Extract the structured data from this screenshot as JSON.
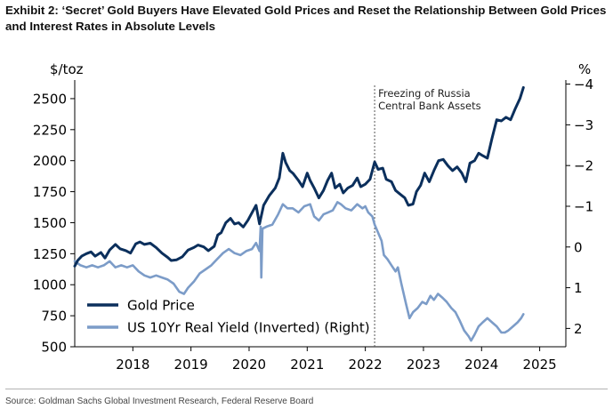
{
  "header": {
    "title_line1": "Exhibit 2: ‘Secret’ Gold Buyers Have Elevated Gold Prices and Reset the Relationship Between Gold Prices",
    "title_line2": "and Interest Rates in Absolute Levels"
  },
  "footer": {
    "source": "Source: Goldman Sachs Global Investment Research, Federal Reserve Board"
  },
  "chart_data": {
    "type": "line",
    "x_unit": "year",
    "xlim": [
      2017.0,
      2025.45
    ],
    "xticks": [
      2018,
      2019,
      2020,
      2021,
      2022,
      2023,
      2024,
      2025
    ],
    "xtick_labels": [
      "2018",
      "2019",
      "2020",
      "2021",
      "2022",
      "2023",
      "2024",
      "2025"
    ],
    "ylabel_left": "$/toz",
    "ylim_left": [
      500,
      2650
    ],
    "yticks_left": [
      500,
      750,
      1000,
      1250,
      1500,
      1750,
      2000,
      2250,
      2500
    ],
    "ytick_labels_left": [
      "500",
      "750",
      "1000",
      "1250",
      "1500",
      "1750",
      "2000",
      "2250",
      "2500"
    ],
    "ylabel_right": "%",
    "ylim_right": [
      2.45,
      -4.1
    ],
    "right_axis_inverted": true,
    "yticks_right": [
      -4,
      -3,
      -2,
      -1,
      0,
      1,
      2
    ],
    "ytick_labels_right": [
      "−4",
      "−3",
      "−2",
      "−1",
      "0",
      "1",
      "2"
    ],
    "annotation": {
      "x": 2022.16,
      "line1": "Freezing of Russia",
      "line2": "Central Bank Assets"
    },
    "legend": {
      "placement": "lower-left",
      "entries": [
        "Gold Price",
        "US 10Yr Real Yield (Inverted) (Right)"
      ]
    },
    "colors": {
      "gold": "#0b2f5c",
      "yield": "#7c9cc8",
      "annotation": "#555555",
      "axis": "#000000"
    },
    "series": [
      {
        "name": "Gold Price",
        "axis": "left",
        "points": [
          [
            2017.0,
            1150
          ],
          [
            2017.05,
            1195
          ],
          [
            2017.12,
            1230
          ],
          [
            2017.2,
            1250
          ],
          [
            2017.28,
            1265
          ],
          [
            2017.35,
            1230
          ],
          [
            2017.45,
            1260
          ],
          [
            2017.52,
            1215
          ],
          [
            2017.6,
            1280
          ],
          [
            2017.7,
            1325
          ],
          [
            2017.78,
            1290
          ],
          [
            2017.88,
            1275
          ],
          [
            2017.96,
            1255
          ],
          [
            2018.05,
            1330
          ],
          [
            2018.12,
            1345
          ],
          [
            2018.2,
            1325
          ],
          [
            2018.3,
            1335
          ],
          [
            2018.4,
            1300
          ],
          [
            2018.5,
            1255
          ],
          [
            2018.6,
            1220
          ],
          [
            2018.66,
            1195
          ],
          [
            2018.75,
            1200
          ],
          [
            2018.85,
            1225
          ],
          [
            2018.95,
            1280
          ],
          [
            2019.05,
            1300
          ],
          [
            2019.12,
            1320
          ],
          [
            2019.22,
            1305
          ],
          [
            2019.3,
            1275
          ],
          [
            2019.4,
            1310
          ],
          [
            2019.46,
            1400
          ],
          [
            2019.52,
            1420
          ],
          [
            2019.6,
            1500
          ],
          [
            2019.68,
            1535
          ],
          [
            2019.75,
            1490
          ],
          [
            2019.82,
            1500
          ],
          [
            2019.9,
            1465
          ],
          [
            2019.98,
            1520
          ],
          [
            2020.05,
            1580
          ],
          [
            2020.12,
            1640
          ],
          [
            2020.18,
            1490
          ],
          [
            2020.25,
            1640
          ],
          [
            2020.35,
            1720
          ],
          [
            2020.45,
            1780
          ],
          [
            2020.52,
            1860
          ],
          [
            2020.58,
            2060
          ],
          [
            2020.63,
            1985
          ],
          [
            2020.7,
            1920
          ],
          [
            2020.76,
            1895
          ],
          [
            2020.85,
            1840
          ],
          [
            2020.92,
            1790
          ],
          [
            2021.0,
            1900
          ],
          [
            2021.05,
            1840
          ],
          [
            2021.12,
            1780
          ],
          [
            2021.2,
            1700
          ],
          [
            2021.28,
            1760
          ],
          [
            2021.35,
            1840
          ],
          [
            2021.42,
            1900
          ],
          [
            2021.48,
            1780
          ],
          [
            2021.56,
            1810
          ],
          [
            2021.62,
            1740
          ],
          [
            2021.7,
            1780
          ],
          [
            2021.78,
            1800
          ],
          [
            2021.86,
            1860
          ],
          [
            2021.92,
            1790
          ],
          [
            2022.0,
            1810
          ],
          [
            2022.08,
            1850
          ],
          [
            2022.16,
            1990
          ],
          [
            2022.22,
            1930
          ],
          [
            2022.3,
            1940
          ],
          [
            2022.36,
            1850
          ],
          [
            2022.45,
            1830
          ],
          [
            2022.52,
            1760
          ],
          [
            2022.6,
            1730
          ],
          [
            2022.68,
            1700
          ],
          [
            2022.74,
            1640
          ],
          [
            2022.82,
            1650
          ],
          [
            2022.88,
            1750
          ],
          [
            2022.95,
            1800
          ],
          [
            2023.02,
            1900
          ],
          [
            2023.1,
            1830
          ],
          [
            2023.18,
            1920
          ],
          [
            2023.26,
            2000
          ],
          [
            2023.34,
            2010
          ],
          [
            2023.42,
            1960
          ],
          [
            2023.5,
            1920
          ],
          [
            2023.58,
            1950
          ],
          [
            2023.66,
            1900
          ],
          [
            2023.73,
            1830
          ],
          [
            2023.8,
            1980
          ],
          [
            2023.88,
            2000
          ],
          [
            2023.95,
            2060
          ],
          [
            2024.02,
            2040
          ],
          [
            2024.1,
            2020
          ],
          [
            2024.18,
            2180
          ],
          [
            2024.26,
            2330
          ],
          [
            2024.34,
            2320
          ],
          [
            2024.42,
            2350
          ],
          [
            2024.5,
            2330
          ],
          [
            2024.58,
            2420
          ],
          [
            2024.66,
            2500
          ],
          [
            2024.72,
            2590
          ]
        ]
      },
      {
        "name": "US 10Yr Real Yield (Inverted) (Right)",
        "axis": "right",
        "points": [
          [
            2017.0,
            0.35
          ],
          [
            2017.1,
            0.45
          ],
          [
            2017.2,
            0.5
          ],
          [
            2017.3,
            0.45
          ],
          [
            2017.4,
            0.5
          ],
          [
            2017.5,
            0.45
          ],
          [
            2017.6,
            0.35
          ],
          [
            2017.7,
            0.5
          ],
          [
            2017.8,
            0.45
          ],
          [
            2017.9,
            0.5
          ],
          [
            2018.0,
            0.45
          ],
          [
            2018.1,
            0.6
          ],
          [
            2018.2,
            0.7
          ],
          [
            2018.3,
            0.75
          ],
          [
            2018.4,
            0.7
          ],
          [
            2018.5,
            0.75
          ],
          [
            2018.6,
            0.8
          ],
          [
            2018.7,
            0.9
          ],
          [
            2018.8,
            1.1
          ],
          [
            2018.88,
            1.15
          ],
          [
            2018.95,
            1.0
          ],
          [
            2019.05,
            0.85
          ],
          [
            2019.15,
            0.65
          ],
          [
            2019.25,
            0.55
          ],
          [
            2019.35,
            0.45
          ],
          [
            2019.45,
            0.3
          ],
          [
            2019.55,
            0.15
          ],
          [
            2019.65,
            0.05
          ],
          [
            2019.75,
            0.15
          ],
          [
            2019.85,
            0.2
          ],
          [
            2019.95,
            0.1
          ],
          [
            2020.05,
            0.05
          ],
          [
            2020.12,
            -0.1
          ],
          [
            2020.18,
            0.1
          ],
          [
            2020.2,
            -0.5
          ],
          [
            2020.21,
            0.75
          ],
          [
            2020.23,
            -0.45
          ],
          [
            2020.3,
            -0.5
          ],
          [
            2020.4,
            -0.55
          ],
          [
            2020.5,
            -0.8
          ],
          [
            2020.58,
            -1.05
          ],
          [
            2020.66,
            -0.95
          ],
          [
            2020.75,
            -0.95
          ],
          [
            2020.85,
            -0.85
          ],
          [
            2020.95,
            -1.0
          ],
          [
            2021.05,
            -1.05
          ],
          [
            2021.12,
            -0.75
          ],
          [
            2021.2,
            -0.65
          ],
          [
            2021.28,
            -0.8
          ],
          [
            2021.36,
            -0.85
          ],
          [
            2021.44,
            -0.9
          ],
          [
            2021.52,
            -1.1
          ],
          [
            2021.58,
            -1.05
          ],
          [
            2021.66,
            -0.95
          ],
          [
            2021.76,
            -0.9
          ],
          [
            2021.86,
            -1.05
          ],
          [
            2021.95,
            -0.95
          ],
          [
            2022.0,
            -1.0
          ],
          [
            2022.05,
            -0.85
          ],
          [
            2022.12,
            -0.75
          ],
          [
            2022.16,
            -0.55
          ],
          [
            2022.22,
            -0.35
          ],
          [
            2022.28,
            -0.15
          ],
          [
            2022.32,
            0.2
          ],
          [
            2022.38,
            0.3
          ],
          [
            2022.45,
            0.45
          ],
          [
            2022.52,
            0.6
          ],
          [
            2022.56,
            0.5
          ],
          [
            2022.62,
            0.9
          ],
          [
            2022.7,
            1.4
          ],
          [
            2022.76,
            1.75
          ],
          [
            2022.82,
            1.6
          ],
          [
            2022.9,
            1.5
          ],
          [
            2022.98,
            1.35
          ],
          [
            2023.05,
            1.4
          ],
          [
            2023.12,
            1.2
          ],
          [
            2023.18,
            1.3
          ],
          [
            2023.25,
            1.15
          ],
          [
            2023.33,
            1.25
          ],
          [
            2023.4,
            1.35
          ],
          [
            2023.48,
            1.5
          ],
          [
            2023.55,
            1.6
          ],
          [
            2023.62,
            1.8
          ],
          [
            2023.7,
            2.05
          ],
          [
            2023.78,
            2.2
          ],
          [
            2023.82,
            2.3
          ],
          [
            2023.88,
            2.15
          ],
          [
            2023.95,
            1.95
          ],
          [
            2024.02,
            1.85
          ],
          [
            2024.1,
            1.75
          ],
          [
            2024.18,
            1.85
          ],
          [
            2024.26,
            1.95
          ],
          [
            2024.34,
            2.1
          ],
          [
            2024.4,
            2.1
          ],
          [
            2024.46,
            2.05
          ],
          [
            2024.54,
            1.95
          ],
          [
            2024.62,
            1.85
          ],
          [
            2024.68,
            1.75
          ],
          [
            2024.72,
            1.65
          ]
        ]
      }
    ]
  }
}
